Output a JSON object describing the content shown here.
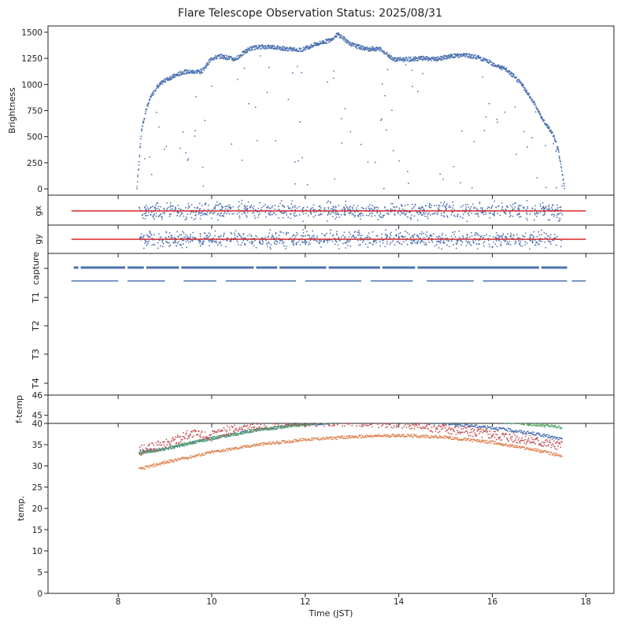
{
  "figure": {
    "title": "Flare Telescope Observation Status: 2025/08/31"
  },
  "chart_data": [
    {
      "panel": "brightness",
      "type": "scatter",
      "ylabel": "Brightness",
      "xlim": [
        6.5,
        18.6
      ],
      "ylim": [
        -60,
        1560
      ],
      "yticks": [
        0,
        250,
        500,
        750,
        1000,
        1250,
        1500
      ],
      "color": "#4c72b0",
      "x": [
        8.4,
        8.5,
        8.6,
        8.7,
        8.8,
        9.0,
        9.2,
        9.4,
        9.6,
        9.8,
        10.0,
        10.2,
        10.5,
        10.8,
        11.0,
        11.3,
        11.6,
        11.9,
        12.2,
        12.5,
        12.7,
        13.0,
        13.3,
        13.6,
        13.9,
        14.2,
        14.5,
        14.8,
        15.1,
        15.4,
        15.7,
        16.0,
        16.3,
        16.6,
        16.9,
        17.1,
        17.3,
        17.4,
        17.55
      ],
      "y": [
        0,
        560,
        760,
        880,
        960,
        1040,
        1080,
        1120,
        1120,
        1130,
        1250,
        1270,
        1240,
        1340,
        1360,
        1360,
        1340,
        1330,
        1380,
        1420,
        1480,
        1380,
        1340,
        1340,
        1240,
        1240,
        1250,
        1240,
        1270,
        1280,
        1260,
        1200,
        1140,
        1020,
        820,
        650,
        520,
        400,
        0
      ]
    },
    {
      "panel": "gx",
      "type": "scatter",
      "ylabel": "gx",
      "color": "#4c72b0",
      "x_range": [
        8.45,
        17.5
      ],
      "reference_line": {
        "color": "#d62728",
        "x": [
          7.0,
          18.0
        ],
        "y": 0
      }
    },
    {
      "panel": "gy",
      "type": "scatter",
      "ylabel": "gy",
      "color": "#4c72b0",
      "x_range": [
        8.45,
        17.5
      ],
      "reference_line": {
        "color": "#d62728",
        "x": [
          7.0,
          18.0
        ],
        "y": 0
      }
    },
    {
      "panel": "capture",
      "type": "line",
      "ylabel_ticks": [
        "capture",
        "T1",
        "T2",
        "T3",
        "T4"
      ],
      "color": "#4c72b0",
      "series": [
        {
          "row": "capture",
          "segments": [
            [
              7.05,
              7.15
            ],
            [
              7.2,
              8.15
            ],
            [
              8.2,
              8.55
            ],
            [
              8.6,
              9.3
            ],
            [
              9.35,
              10.9
            ],
            [
              10.95,
              11.4
            ],
            [
              11.45,
              12.45
            ],
            [
              12.5,
              13.6
            ],
            [
              13.65,
              14.35
            ],
            [
              14.4,
              17.0
            ],
            [
              17.05,
              17.6
            ]
          ]
        },
        {
          "row": "T1",
          "segments": [
            [
              7.0,
              8.0
            ],
            [
              8.2,
              9.0
            ],
            [
              9.4,
              10.1
            ],
            [
              10.3,
              11.8
            ],
            [
              12.0,
              13.2
            ],
            [
              13.4,
              14.3
            ],
            [
              14.6,
              15.6
            ],
            [
              15.8,
              17.6
            ],
            [
              17.7,
              18.0
            ]
          ]
        }
      ]
    },
    {
      "panel": "f-temp",
      "type": "line",
      "ylabel": "f-temp",
      "yticks": [
        45,
        46
      ],
      "ylim": [
        44.6,
        46
      ]
    },
    {
      "panel": "temperature",
      "type": "scatter",
      "ylabel": "temp.",
      "xlabel": "Time (JST)",
      "xticks": [
        8,
        10,
        12,
        14,
        16,
        18
      ],
      "ylim": [
        0,
        40
      ],
      "yticks": [
        0,
        5,
        10,
        15,
        20,
        25,
        30,
        35,
        40
      ],
      "series": [
        {
          "color": "#4c72b0",
          "x": [
            8.45,
            9.0,
            10.0,
            11.0,
            12.0,
            13.0,
            14.0,
            15.0,
            16.0,
            17.0,
            17.5
          ],
          "y": [
            33.2,
            34.0,
            36.5,
            38.5,
            39.8,
            40.5,
            40.6,
            40.0,
            39.0,
            37.4,
            36.2
          ]
        },
        {
          "color": "#55a868",
          "x": [
            8.45,
            9.0,
            10.0,
            11.0,
            11.8,
            12.5,
            13.5,
            14.5,
            15.5,
            16.5,
            17.5
          ],
          "y": [
            33.0,
            34.0,
            36.5,
            38.5,
            39.5,
            40.2,
            40.8,
            40.9,
            40.6,
            40.2,
            39.0
          ]
        },
        {
          "color": "#c44e52",
          "x": [
            8.45,
            9.0,
            9.5,
            10.0,
            10.5,
            11.0,
            11.5,
            12.0,
            13.0,
            14.0,
            15.0,
            16.0,
            17.0,
            17.5
          ],
          "y": [
            33.5,
            35.0,
            37.5,
            37.0,
            39.0,
            39.5,
            40.2,
            40.5,
            40.5,
            40.0,
            38.8,
            37.5,
            35.8,
            34.5
          ]
        },
        {
          "color": "#dd8452",
          "x": [
            8.45,
            9.0,
            10.0,
            11.0,
            12.0,
            13.0,
            14.0,
            15.0,
            16.0,
            17.0,
            17.5
          ],
          "y": [
            29.2,
            30.8,
            33.2,
            35.0,
            36.2,
            36.8,
            37.2,
            36.7,
            35.5,
            33.6,
            32.2
          ]
        }
      ]
    }
  ]
}
